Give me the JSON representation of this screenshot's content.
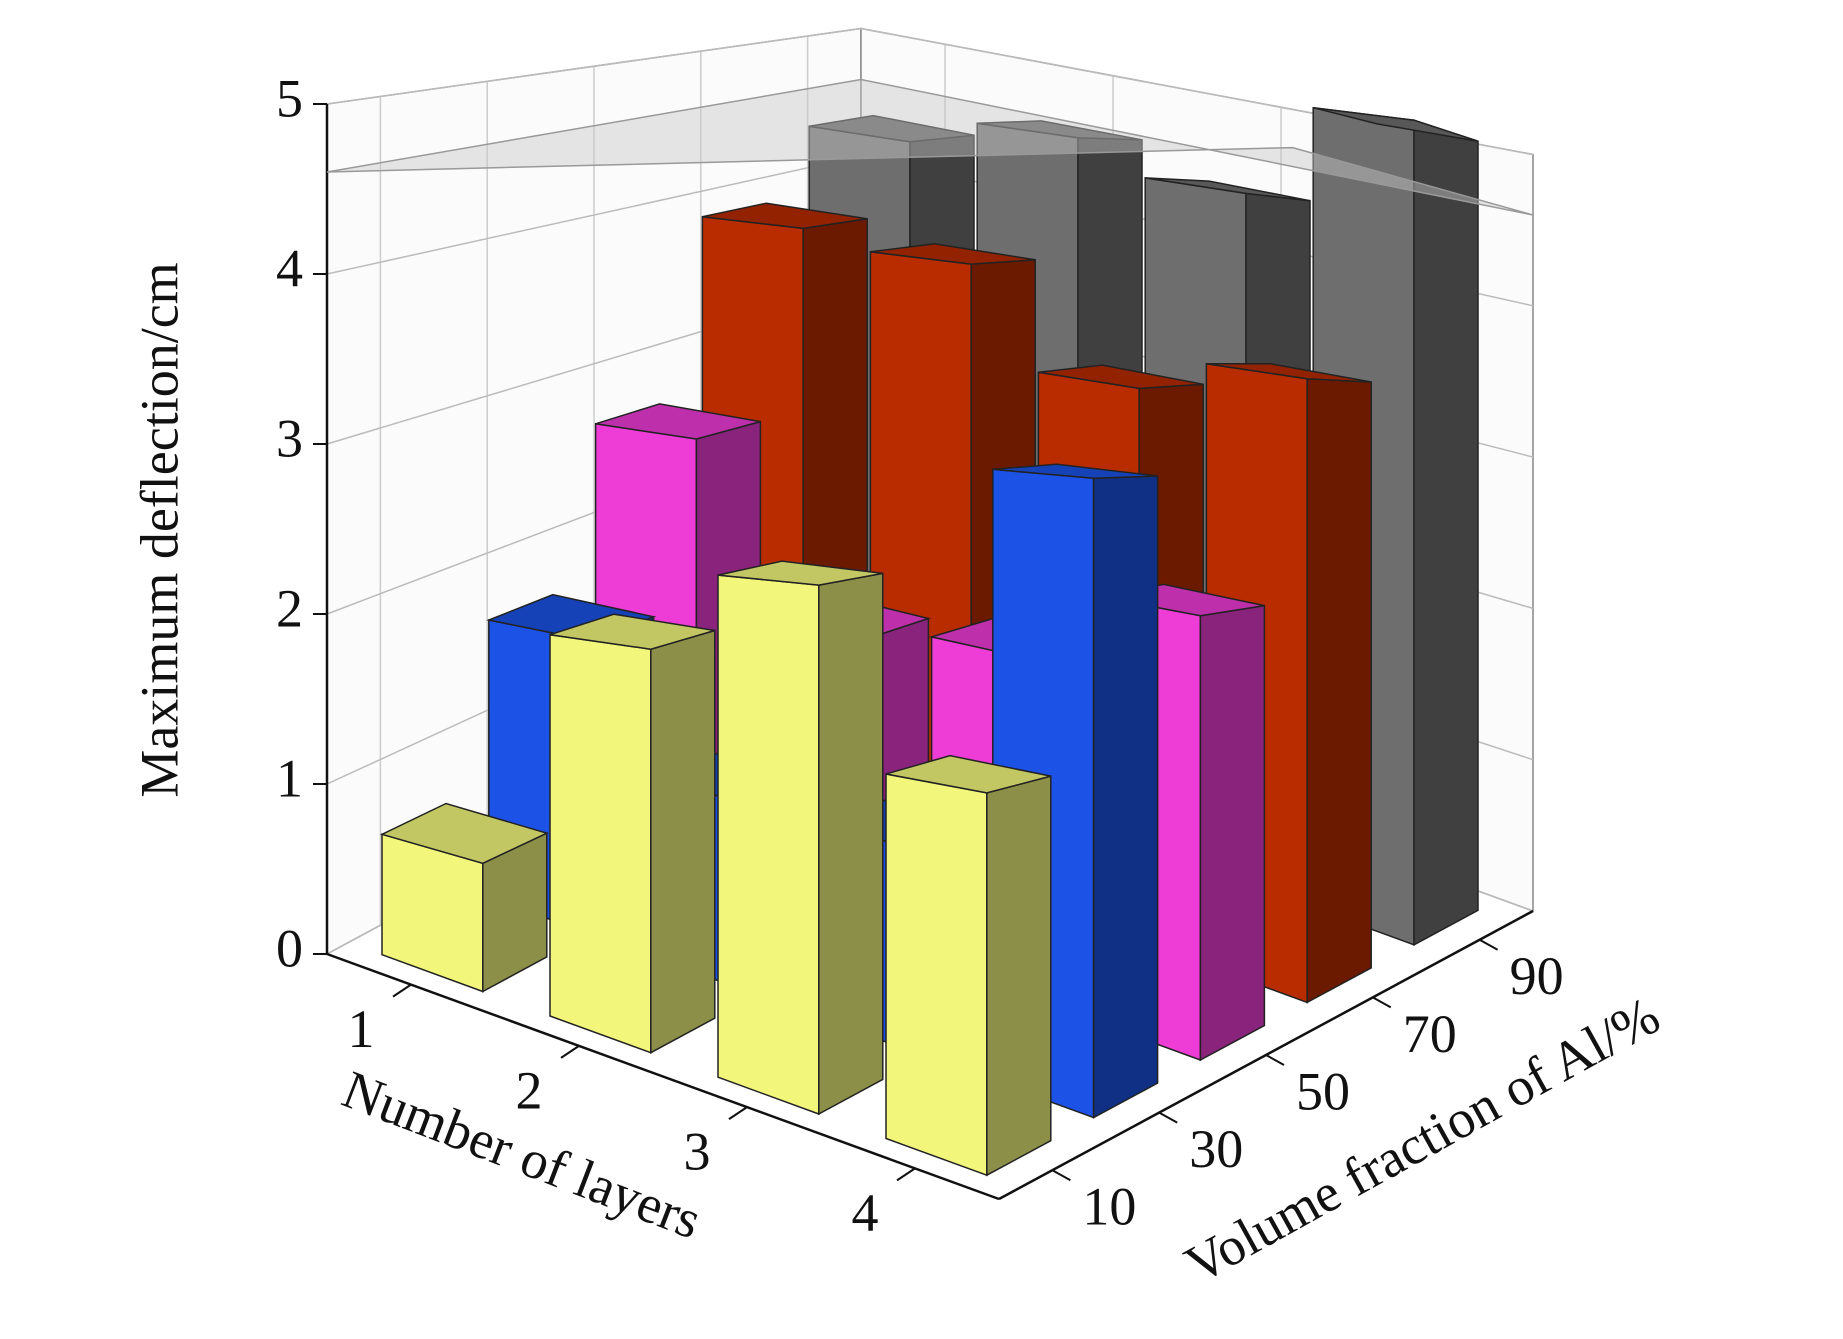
{
  "chart_data": {
    "type": "bar3d",
    "zlabel": "Maximum deflection/cm",
    "xlabel": "Number of layers",
    "ylabel": "Volume fraction of Al/%",
    "categories": [
      "1",
      "2",
      "3",
      "4"
    ],
    "depth_categories": [
      "10",
      "30",
      "50",
      "70",
      "90"
    ],
    "series": [
      {
        "color": "#f2f77c",
        "values": [
          0.7,
          2.0,
          2.4,
          1.6
        ]
      },
      {
        "color": "#1c52e6",
        "values": [
          1.7,
          1.0,
          1.0,
          2.9
        ]
      },
      {
        "color": "#ee3cd6",
        "values": [
          2.7,
          1.7,
          1.8,
          2.2
        ]
      },
      {
        "color": "#b82c00",
        "values": [
          3.9,
          3.8,
          3.2,
          3.4
        ]
      },
      {
        "color": "#6e6e6e",
        "values": [
          4.4,
          4.6,
          4.4,
          5.0
        ]
      }
    ],
    "reference_plane": 4.6,
    "zlim": [
      0,
      5
    ],
    "zticks": [
      0,
      1,
      2,
      3,
      4,
      5
    ],
    "grid": true
  }
}
